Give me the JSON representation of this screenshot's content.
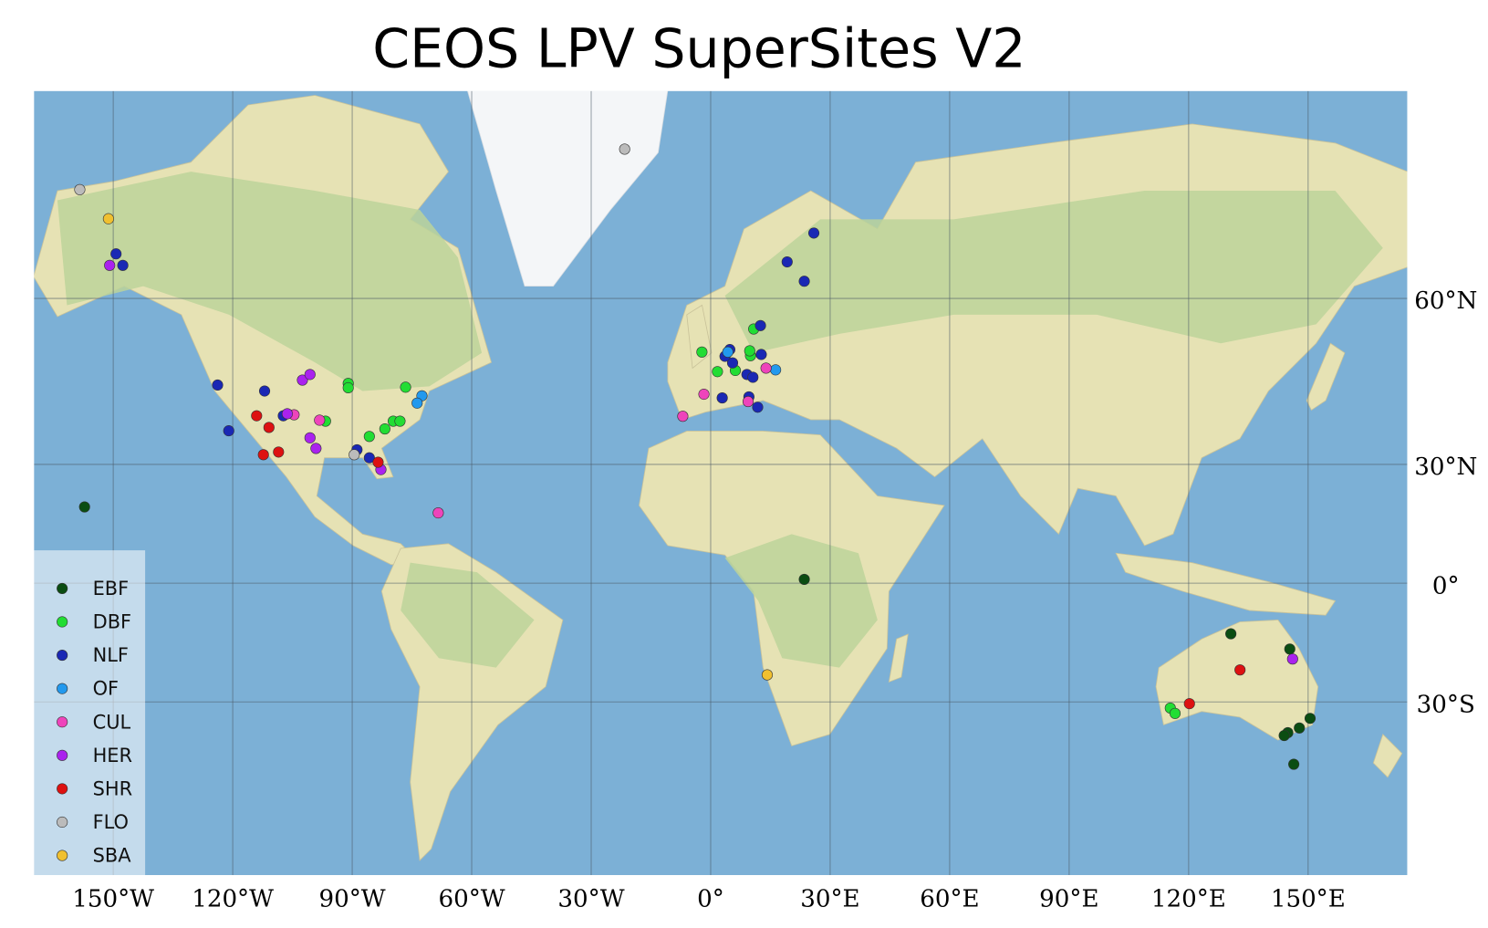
{
  "chart_data": {
    "type": "scatter",
    "title": "CEOS LPV SuperSites V2",
    "projection": "mercator",
    "grid": true,
    "legend": "lower left",
    "xlim": [
      -170,
      175
    ],
    "ylim": [
      -61,
      78.3
    ],
    "xticks": [
      {
        "value": -150,
        "label": "150°W"
      },
      {
        "value": -120,
        "label": "120°W"
      },
      {
        "value": -90,
        "label": "90°W"
      },
      {
        "value": -60,
        "label": "60°W"
      },
      {
        "value": -30,
        "label": "30°W"
      },
      {
        "value": 0,
        "label": "0°"
      },
      {
        "value": 30,
        "label": "30°E"
      },
      {
        "value": 60,
        "label": "60°E"
      },
      {
        "value": 90,
        "label": "90°E"
      },
      {
        "value": 120,
        "label": "120°E"
      },
      {
        "value": 150,
        "label": "150°E"
      }
    ],
    "yticks": [
      {
        "value": -30,
        "label": "30°S"
      },
      {
        "value": 0,
        "label": "0°"
      },
      {
        "value": 30,
        "label": "30°N"
      },
      {
        "value": 60,
        "label": "60°N"
      }
    ],
    "series": [
      {
        "name": "EBF",
        "color": "#0b4d12",
        "x": [
          -157.2,
          23.5,
          130.6,
          145.4,
          150.5,
          147.8,
          144.9,
          144.0,
          146.4
        ],
        "values": [
          19.8,
          1.0,
          -13.3,
          -17.2,
          -33.7,
          -35.8,
          -36.8,
          -37.4,
          -43.2
        ]
      },
      {
        "name": "DBF",
        "color": "#22dd33",
        "x": [
          -91.0,
          -91.0,
          -76.6,
          -96.7,
          -85.7,
          -81.8,
          -79.7,
          -78.0,
          -2.2,
          1.7,
          6.2,
          10.0,
          9.8,
          10.8,
          115.4,
          116.6
        ],
        "values": [
          46.7,
          45.9,
          46.0,
          39.4,
          36.2,
          37.8,
          39.4,
          39.4,
          52.1,
          48.8,
          49.0,
          51.5,
          52.3,
          55.7,
          -31.4,
          -32.6
        ]
      },
      {
        "name": "NLF",
        "color": "#1a28b4",
        "x": [
          -149.3,
          -147.6,
          25.9,
          19.2,
          23.5,
          12.5,
          -123.8,
          -112.0,
          -107.3,
          -121.0,
          -88.8,
          -85.7,
          4.8,
          5.5,
          3.6,
          9.1,
          10.6,
          12.7,
          9.6,
          11.8,
          2.9
        ],
        "values": [
          65.4,
          64.1,
          67.6,
          64.5,
          62.2,
          56.2,
          46.4,
          45.3,
          40.5,
          37.4,
          33.3,
          31.5,
          52.5,
          50.3,
          51.4,
          48.3,
          47.8,
          51.7,
          44.2,
          42.2,
          44.0
        ]
      },
      {
        "name": "OF",
        "color": "#2299ee",
        "x": [
          -72.5,
          -73.7,
          16.3,
          4.3
        ],
        "values": [
          44.4,
          43.0,
          49.1,
          52.1
        ]
      },
      {
        "name": "CUL",
        "color": "#ee44bb",
        "x": [
          13.9,
          -7.0,
          -1.7,
          -98.2,
          -68.4,
          9.4,
          -104.6
        ],
        "values": [
          49.4,
          40.4,
          44.7,
          39.6,
          18.3,
          43.3,
          40.7
        ]
      },
      {
        "name": "HER",
        "color": "#aa22ee",
        "x": [
          -150.9,
          -102.5,
          -100.6,
          -106.3,
          -100.6,
          -99.1,
          -82.8,
          146.1
        ],
        "values": [
          64.1,
          47.3,
          48.3,
          40.9,
          35.9,
          33.6,
          28.8,
          -19.7
        ]
      },
      {
        "name": "SHR",
        "color": "#dd1111",
        "x": [
          -114.0,
          -110.9,
          -108.5,
          -112.3,
          -83.5,
          132.9,
          120.2
        ],
        "values": [
          40.5,
          38.1,
          32.8,
          32.2,
          30.5,
          -22.4,
          -30.4
        ]
      },
      {
        "name": "FLO",
        "color": "#bbbbbb",
        "x": [
          -158.4,
          -21.6,
          -89.5
        ],
        "values": [
          71.6,
          74.7,
          32.2
        ]
      },
      {
        "name": "SBA",
        "color": "#f0c030",
        "x": [
          -151.2,
          14.2
        ],
        "values": [
          69.0,
          -23.6
        ]
      }
    ]
  }
}
